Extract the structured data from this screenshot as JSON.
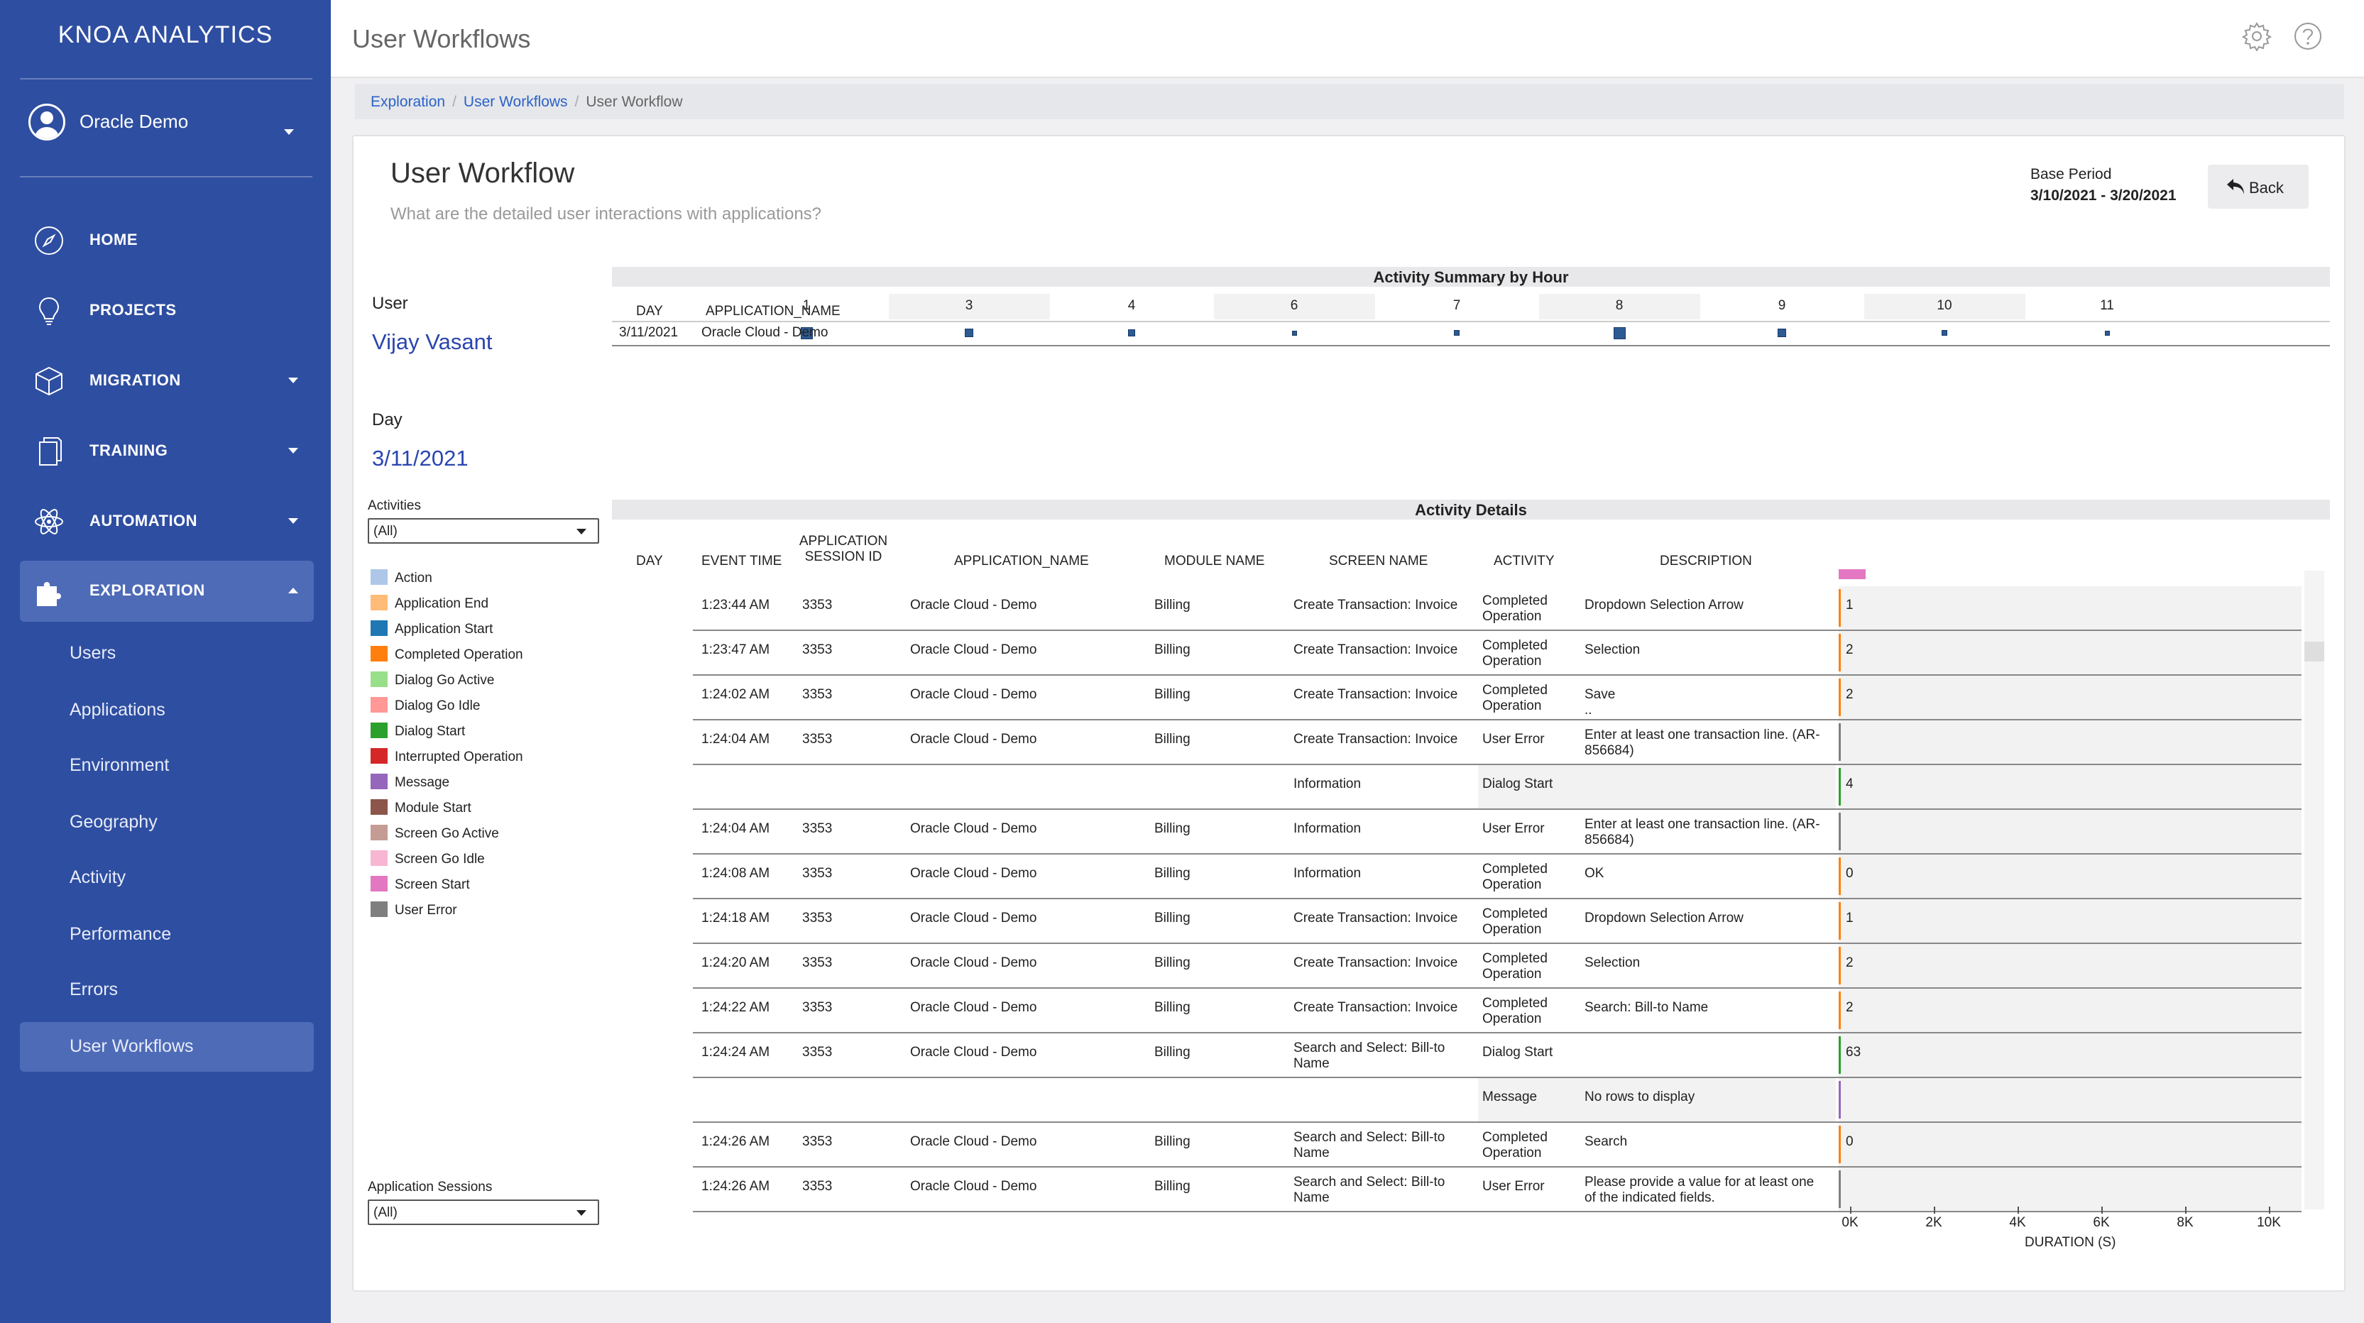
{
  "sidebar": {
    "brand": "KNOA ANALYTICS",
    "profile_name": "Oracle Demo",
    "nav": [
      {
        "label": "HOME",
        "icon": "compass-icon",
        "has_caret": false
      },
      {
        "label": "PROJECTS",
        "icon": "lightbulb-icon",
        "has_caret": false
      },
      {
        "label": "MIGRATION",
        "icon": "cube-icon",
        "has_caret": true
      },
      {
        "label": "TRAINING",
        "icon": "documents-icon",
        "has_caret": true
      },
      {
        "label": "AUTOMATION",
        "icon": "atom-icon",
        "has_caret": true
      },
      {
        "label": "EXPLORATION",
        "icon": "puzzle-icon",
        "has_caret": true
      }
    ],
    "sub_nav": [
      "Users",
      "Applications",
      "Environment",
      "Geography",
      "Activity",
      "Performance",
      "Errors",
      "User Workflows"
    ]
  },
  "header": {
    "title": "User Workflows",
    "icons": [
      "gear-icon",
      "help-icon"
    ]
  },
  "breadcrumb": {
    "items": [
      "Exploration",
      "User Workflows"
    ],
    "current": "User Workflow"
  },
  "card": {
    "title": "User Workflow",
    "subtitle": "What are the detailed user interactions with applications?",
    "base_period_label": "Base Period",
    "base_period_value": "3/10/2021 - 3/20/2021",
    "back_label": "Back"
  },
  "filters": {
    "user_label": "User",
    "user_value": "Vijay Vasant",
    "day_label": "Day",
    "day_value": "3/11/2021",
    "activities_label": "Activities",
    "activities_value": "(All)",
    "sessions_label": "Application Sessions",
    "sessions_value": "(All)"
  },
  "legend": [
    {
      "label": "Action",
      "color": "#aec7e8"
    },
    {
      "label": "Application End",
      "color": "#ffbb78"
    },
    {
      "label": "Application Start",
      "color": "#1f77b4"
    },
    {
      "label": "Completed Operation",
      "color": "#ff7f0e"
    },
    {
      "label": "Dialog Go Active",
      "color": "#98df8a"
    },
    {
      "label": "Dialog Go Idle",
      "color": "#ff9896"
    },
    {
      "label": "Dialog Start",
      "color": "#2ca02c"
    },
    {
      "label": "Interrupted Operation",
      "color": "#d62728"
    },
    {
      "label": "Message",
      "color": "#9467bd"
    },
    {
      "label": "Module Start",
      "color": "#8c564b"
    },
    {
      "label": "Screen Go Active",
      "color": "#c49c94"
    },
    {
      "label": "Screen Go Idle",
      "color": "#f7b6d2"
    },
    {
      "label": "Screen Start",
      "color": "#e377c2"
    },
    {
      "label": "User Error",
      "color": "#7f7f7f"
    }
  ],
  "summary": {
    "title": "Activity Summary by Hour",
    "col_day": "DAY",
    "col_app": "APPLICATION_NAME",
    "hours": [
      "1",
      "3",
      "4",
      "6",
      "7",
      "8",
      "9",
      "10",
      "11"
    ],
    "row": {
      "day": "3/11/2021",
      "app": "Oracle Cloud - Demo"
    },
    "square_levels": [
      0.9,
      0.6,
      0.45,
      0.2,
      0.25,
      0.95,
      0.6,
      0.25,
      0.2
    ]
  },
  "details": {
    "title": "Activity Details",
    "headers": {
      "day": "DAY",
      "event_time": "EVENT TIME",
      "session": "APPLICATION SESSION ID",
      "app": "APPLICATION_NAME",
      "module": "MODULE NAME",
      "screen": "SCREEN NAME",
      "activity": "ACTIVITY",
      "description": "DESCRIPTION"
    },
    "header_marker_color": "#e377c2",
    "rows": [
      {
        "time": "1:23:44 AM",
        "session": "3353",
        "app": "Oracle Cloud - Demo",
        "module": "Billing",
        "screen": "Create Transaction: Invoice",
        "activity": "Completed Operation",
        "description": "Dropdown Selection Arrow",
        "value": "1"
      },
      {
        "time": "1:23:47 AM",
        "session": "3353",
        "app": "Oracle Cloud - Demo",
        "module": "Billing",
        "screen": "Create Transaction: Invoice",
        "activity": "Completed Operation",
        "description": "Selection",
        "value": "2"
      },
      {
        "time": "1:24:02 AM",
        "session": "3353",
        "app": "Oracle Cloud - Demo",
        "module": "Billing",
        "screen": "Create Transaction: Invoice",
        "activity": "Completed Operation",
        "description": "Save\n..",
        "value": "2"
      },
      {
        "time": "1:24:04 AM",
        "session": "3353",
        "app": "Oracle Cloud - Demo",
        "module": "Billing",
        "screen": "Create Transaction: Invoice",
        "activity": "User Error",
        "description": "Enter at least one transaction line. (AR-856684)",
        "value": ""
      },
      {
        "time": "",
        "session": "",
        "app": "",
        "module": "",
        "screen": "Information",
        "activity": "Dialog Start",
        "description": "",
        "value": "4"
      },
      {
        "time": "1:24:04 AM",
        "session": "3353",
        "app": "Oracle Cloud - Demo",
        "module": "Billing",
        "screen": "Information",
        "activity": "User Error",
        "description": "Enter at least one transaction line. (AR-856684)",
        "value": ""
      },
      {
        "time": "1:24:08 AM",
        "session": "3353",
        "app": "Oracle Cloud - Demo",
        "module": "Billing",
        "screen": "Information",
        "activity": "Completed Operation",
        "description": "OK",
        "value": "0"
      },
      {
        "time": "1:24:18 AM",
        "session": "3353",
        "app": "Oracle Cloud - Demo",
        "module": "Billing",
        "screen": "Create Transaction: Invoice",
        "activity": "Completed Operation",
        "description": "Dropdown Selection Arrow",
        "value": "1"
      },
      {
        "time": "1:24:20 AM",
        "session": "3353",
        "app": "Oracle Cloud - Demo",
        "module": "Billing",
        "screen": "Create Transaction: Invoice",
        "activity": "Completed Operation",
        "description": "Selection",
        "value": "2"
      },
      {
        "time": "1:24:22 AM",
        "session": "3353",
        "app": "Oracle Cloud - Demo",
        "module": "Billing",
        "screen": "Create Transaction: Invoice",
        "activity": "Completed Operation",
        "description": "Search: Bill-to Name",
        "value": "2"
      },
      {
        "time": "1:24:24 AM",
        "session": "3353",
        "app": "Oracle Cloud - Demo",
        "module": "Billing",
        "screen": "Search and Select: Bill-to Name",
        "activity": "Dialog Start",
        "description": "",
        "value": "63"
      },
      {
        "time": "",
        "session": "",
        "app": "",
        "module": "",
        "screen": "",
        "activity": "Message",
        "description": "No rows to display",
        "value": ""
      },
      {
        "time": "1:24:26 AM",
        "session": "3353",
        "app": "Oracle Cloud - Demo",
        "module": "Billing",
        "screen": "Search and Select: Bill-to Name",
        "activity": "Completed Operation",
        "description": "Search",
        "value": "0"
      },
      {
        "time": "1:24:26 AM",
        "session": "3353",
        "app": "Oracle Cloud - Demo",
        "module": "Billing",
        "screen": "Search and Select: Bill-to Name",
        "activity": "User Error",
        "description": "Please provide a value for at least one of the indicated fields.",
        "value": ""
      }
    ],
    "x_axis": {
      "ticks": [
        "0K",
        "2K",
        "4K",
        "6K",
        "8K",
        "10K"
      ],
      "label": "DURATION (S)"
    }
  }
}
